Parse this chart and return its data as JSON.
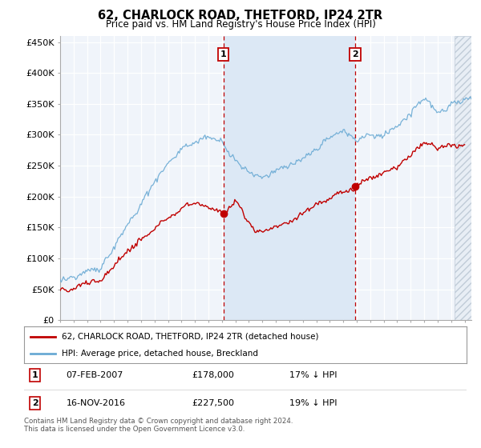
{
  "title": "62, CHARLOCK ROAD, THETFORD, IP24 2TR",
  "subtitle": "Price paid vs. HM Land Registry's House Price Index (HPI)",
  "ylabel_ticks": [
    "£0",
    "£50K",
    "£100K",
    "£150K",
    "£200K",
    "£250K",
    "£300K",
    "£350K",
    "£400K",
    "£450K"
  ],
  "ylim": [
    0,
    460000
  ],
  "xlim_start": 1995.0,
  "xlim_end": 2025.5,
  "marker1_x": 2007.1,
  "marker1_label": "1",
  "marker1_price": 178000,
  "marker2_x": 2016.88,
  "marker2_label": "2",
  "marker2_price": 227500,
  "legend_line1": "62, CHARLOCK ROAD, THETFORD, IP24 2TR (detached house)",
  "legend_line2": "HPI: Average price, detached house, Breckland",
  "note1_label": "1",
  "note1_date": "07-FEB-2007",
  "note1_price": "£178,000",
  "note1_hpi": "17% ↓ HPI",
  "note2_label": "2",
  "note2_date": "16-NOV-2016",
  "note2_price": "£227,500",
  "note2_hpi": "19% ↓ HPI",
  "footer": "Contains HM Land Registry data © Crown copyright and database right 2024.\nThis data is licensed under the Open Government Licence v3.0.",
  "hpi_color": "#6aaad4",
  "price_color": "#c00000",
  "marker_box_color": "#c00000",
  "bg_color": "#f0f4fa",
  "shade_color": "#dce8f5",
  "hatched_bg": "#e8eef5"
}
